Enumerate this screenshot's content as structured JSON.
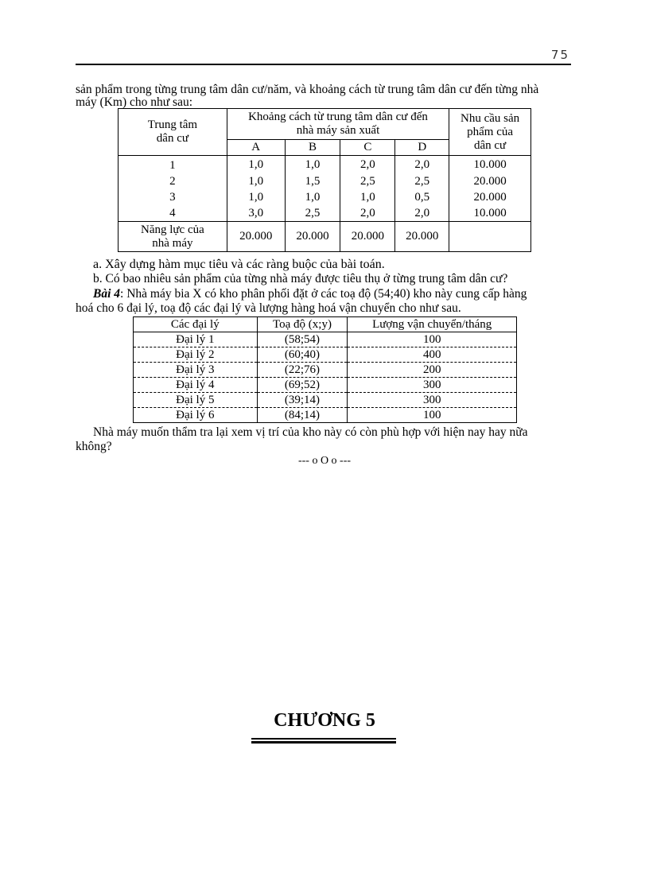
{
  "header": {
    "page_number": "75"
  },
  "intro": [
    "sản phẩm trong từng trung tâm dân cư/năm, và khoảng cách từ trung tâm dân cư đến từng nhà",
    "máy (Km) cho như sau:"
  ],
  "table1": {
    "h_center": "Trung tâm dân cư",
    "h_distance": "Khoảng cách từ trung tâm dân cư đến nhà máy sản xuất",
    "h_demand": "Nhu cầu sản phẩm của dân cư",
    "factories": [
      "A",
      "B",
      "C",
      "D"
    ],
    "rows": [
      {
        "center": "1",
        "d": [
          "1,0",
          "1,0",
          "2,0",
          "2,0"
        ],
        "demand": "10.000"
      },
      {
        "center": "2",
        "d": [
          "1,0",
          "1,5",
          "2,5",
          "2,5"
        ],
        "demand": "20.000"
      },
      {
        "center": "3",
        "d": [
          "1,0",
          "1,0",
          "1,0",
          "0,5"
        ],
        "demand": "20.000"
      },
      {
        "center": "4",
        "d": [
          "3,0",
          "2,5",
          "2,0",
          "2,0"
        ],
        "demand": "10.000"
      }
    ],
    "capacity_label": "Năng lực của nhà máy",
    "capacity": [
      "20.000",
      "20.000",
      "20.000",
      "20.000"
    ]
  },
  "questions": [
    "a. Xây dựng hàm mục tiêu và các ràng buộc của bài toán.",
    "b. Có bao nhiêu sản phẩm của từng nhà máy được tiêu thụ ở từng trung tâm dân cư?"
  ],
  "bai4": {
    "label": "Bài 4",
    "text1": ": Nhà máy bia X có kho phân phối đặt ở các toạ độ (54;40) kho này cung cấp hàng",
    "text2": "hoá cho 6 đại lý, toạ độ các đại lý và lượng hàng hoá vận chuyển cho như sau."
  },
  "table2": {
    "headers": [
      "Các đại lý",
      "Toạ độ (x;y)",
      "Lượng vận chuyển/tháng"
    ],
    "rows": [
      [
        "Đại lý 1",
        "(58;54)",
        "100"
      ],
      [
        "Đại lý 2",
        "(60;40)",
        "400"
      ],
      [
        "Đại lý 3",
        "(22;76)",
        "200"
      ],
      [
        "Đại lý 4",
        "(69;52)",
        "300"
      ],
      [
        "Đại lý 5",
        "(39;14)",
        "300"
      ],
      [
        "Đại lý 6",
        "(84;14)",
        "100"
      ]
    ]
  },
  "closing": [
    "Nhà máy muốn thẩm tra lại xem vị trí của kho này có còn phù hợp với hiện nay hay nữa",
    "không?"
  ],
  "separator": "--- o O o ---",
  "chapter": "CHƯƠNG 5"
}
